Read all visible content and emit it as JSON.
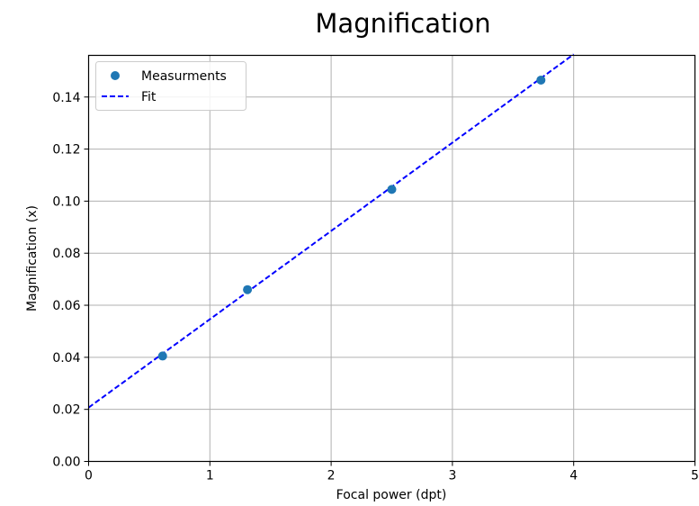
{
  "chart_data": {
    "type": "scatter",
    "title": "Magnification",
    "xlabel": "Focal power (dpt)",
    "ylabel": "Magnification (x)",
    "xlim": [
      0,
      5
    ],
    "ylim": [
      0,
      0.156
    ],
    "xticks": [
      0,
      1,
      2,
      3,
      4,
      5
    ],
    "xtick_labels": [
      "0",
      "1",
      "2",
      "3",
      "4",
      "5"
    ],
    "yticks": [
      0,
      0.02,
      0.04,
      0.06,
      0.08,
      0.1,
      0.12,
      0.14
    ],
    "ytick_labels": [
      "0.00",
      "0.02",
      "0.04",
      "0.06",
      "0.08",
      "0.10",
      "0.12",
      "0.14"
    ],
    "grid": true,
    "legend_position": "top-left",
    "series": [
      {
        "name": "Measurments",
        "kind": "points",
        "color": "#1f77b4",
        "x": [
          0.61,
          1.31,
          2.5,
          3.73
        ],
        "y": [
          0.0405,
          0.066,
          0.1045,
          0.1465
        ]
      },
      {
        "name": "Fit",
        "kind": "dashed-line",
        "color": "#0000ff",
        "x": [
          0,
          4
        ],
        "y": [
          0.0207,
          0.1564
        ]
      }
    ]
  }
}
